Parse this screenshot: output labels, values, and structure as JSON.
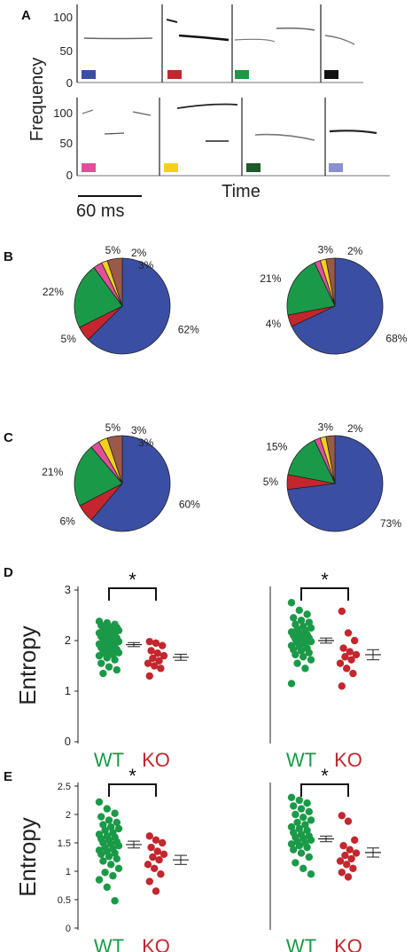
{
  "panel_labels": [
    "A",
    "B",
    "C",
    "D",
    "E"
  ],
  "chart_data": [
    {
      "panel": "A",
      "type": "spectrogram",
      "ylabel": "Frequency",
      "xlabel": "Time",
      "yticks": [
        0,
        50,
        100
      ],
      "scale_bar_label": "60 ms",
      "syllable_colors": [
        "#3a4fa3",
        "#c4262e",
        "#1a9a48",
        "#111111",
        "#e0509a",
        "#f3d11a",
        "#1d5a2c",
        "#8a8fd0"
      ]
    },
    {
      "panel": "B",
      "type": "pie",
      "charts": [
        {
          "slices": [
            {
              "value": 62,
              "label": "62%",
              "color": "#3a4fa3"
            },
            {
              "value": 5,
              "label": "5%",
              "color": "#c4262e"
            },
            {
              "value": 22,
              "label": "22%",
              "color": "#1a9a48"
            },
            {
              "value": 3,
              "label": "3%",
              "color": "#e0509a"
            },
            {
              "value": 2,
              "label": "2%",
              "color": "#f3d11a"
            },
            {
              "value": 5,
              "label": "5%",
              "color": "#9a5a4a"
            }
          ]
        },
        {
          "slices": [
            {
              "value": 68,
              "label": "68%",
              "color": "#3a4fa3"
            },
            {
              "value": 4,
              "label": "4%",
              "color": "#c4262e"
            },
            {
              "value": 21,
              "label": "21%",
              "color": "#1a9a48"
            },
            {
              "value": 2,
              "label": "2%",
              "color": "#e0509a"
            },
            {
              "value": 2,
              "label": "",
              "color": "#f3d11a"
            },
            {
              "value": 3,
              "label": "3%",
              "color": "#9a5a4a"
            }
          ]
        }
      ]
    },
    {
      "panel": "C",
      "type": "pie",
      "charts": [
        {
          "slices": [
            {
              "value": 60,
              "label": "60%",
              "color": "#3a4fa3"
            },
            {
              "value": 6,
              "label": "6%",
              "color": "#c4262e"
            },
            {
              "value": 21,
              "label": "21%",
              "color": "#1a9a48"
            },
            {
              "value": 3,
              "label": "3%",
              "color": "#e0509a"
            },
            {
              "value": 3,
              "label": "3%",
              "color": "#f3d11a"
            },
            {
              "value": 5,
              "label": "5%",
              "color": "#9a5a4a"
            }
          ]
        },
        {
          "slices": [
            {
              "value": 73,
              "label": "73%",
              "color": "#3a4fa3"
            },
            {
              "value": 5,
              "label": "5%",
              "color": "#c4262e"
            },
            {
              "value": 15,
              "label": "15%",
              "color": "#1a9a48"
            },
            {
              "value": 2,
              "label": "2%",
              "color": "#e0509a"
            },
            {
              "value": 2,
              "label": "",
              "color": "#f3d11a"
            },
            {
              "value": 3,
              "label": "3%",
              "color": "#9a5a4a"
            }
          ]
        }
      ]
    },
    {
      "panel": "D",
      "type": "scatter",
      "ylabel": "Entropy",
      "ylim": [
        0,
        3
      ],
      "yticks": [
        0,
        1,
        2,
        3
      ],
      "categories": [
        "WT",
        "KO"
      ],
      "group_colors": {
        "WT": "#1a9a48",
        "KO": "#c4262e"
      },
      "significance": "*",
      "plots": [
        {
          "WT": [
            2.38,
            2.35,
            2.32,
            2.3,
            2.28,
            2.26,
            2.25,
            2.22,
            2.2,
            2.18,
            2.16,
            2.15,
            2.12,
            2.1,
            2.08,
            2.06,
            2.05,
            2.03,
            2.0,
            1.98,
            1.96,
            1.95,
            1.93,
            1.9,
            1.88,
            1.86,
            1.85,
            1.82,
            1.8,
            1.78,
            1.76,
            1.74,
            1.72,
            1.7,
            1.66,
            1.62,
            1.55,
            1.48,
            1.42,
            1.35
          ],
          "KO": [
            1.98,
            1.95,
            1.9,
            1.8,
            1.75,
            1.7,
            1.65,
            1.6,
            1.55,
            1.5,
            1.45,
            1.3
          ],
          "WT_mean": 1.92,
          "WT_sem": 0.04,
          "KO_mean": 1.67,
          "KO_sem": 0.06
        },
        {
          "WT": [
            2.75,
            2.6,
            2.52,
            2.45,
            2.4,
            2.36,
            2.32,
            2.28,
            2.25,
            2.22,
            2.2,
            2.17,
            2.15,
            2.12,
            2.1,
            2.08,
            2.05,
            2.03,
            2.0,
            1.98,
            1.96,
            1.93,
            1.9,
            1.88,
            1.85,
            1.82,
            1.8,
            1.76,
            1.72,
            1.68,
            1.62,
            1.55,
            1.45,
            1.15
          ],
          "KO": [
            2.58,
            2.15,
            2.0,
            1.85,
            1.78,
            1.72,
            1.68,
            1.62,
            1.55,
            1.45,
            1.35,
            1.1
          ],
          "WT_mean": 2.0,
          "WT_sem": 0.05,
          "KO_mean": 1.72,
          "KO_sem": 0.1
        }
      ]
    },
    {
      "panel": "E",
      "type": "scatter",
      "ylabel": "Entropy",
      "ylim": [
        0,
        2.5
      ],
      "yticks": [
        0,
        0.5,
        1,
        1.5,
        2,
        2.5
      ],
      "categories": [
        "WT",
        "KO"
      ],
      "group_colors": {
        "WT": "#1a9a48",
        "KO": "#c4262e"
      },
      "significance": "*",
      "plots": [
        {
          "WT": [
            2.22,
            2.1,
            2.02,
            1.96,
            1.9,
            1.86,
            1.82,
            1.78,
            1.75,
            1.72,
            1.68,
            1.65,
            1.62,
            1.6,
            1.57,
            1.55,
            1.52,
            1.5,
            1.48,
            1.45,
            1.42,
            1.4,
            1.37,
            1.35,
            1.32,
            1.3,
            1.26,
            1.22,
            1.18,
            1.12,
            1.05,
            0.98,
            0.92,
            0.85,
            0.72,
            0.48
          ],
          "KO": [
            1.62,
            1.55,
            1.5,
            1.42,
            1.35,
            1.3,
            1.25,
            1.2,
            1.12,
            1.05,
            0.95,
            0.82,
            0.65
          ],
          "WT_mean": 1.47,
          "WT_sem": 0.06,
          "KO_mean": 1.2,
          "KO_sem": 0.08
        },
        {
          "WT": [
            2.3,
            2.25,
            2.2,
            2.15,
            2.1,
            2.05,
            2.0,
            1.95,
            1.9,
            1.86,
            1.82,
            1.78,
            1.75,
            1.72,
            1.68,
            1.65,
            1.62,
            1.6,
            1.58,
            1.55,
            1.52,
            1.5,
            1.48,
            1.45,
            1.42,
            1.38,
            1.32,
            1.25,
            1.15,
            1.05,
            0.95
          ],
          "KO": [
            1.98,
            1.88,
            1.55,
            1.45,
            1.38,
            1.32,
            1.28,
            1.22,
            1.18,
            1.12,
            1.05,
            0.98,
            0.9
          ],
          "WT_mean": 1.57,
          "WT_sem": 0.05,
          "KO_mean": 1.33,
          "KO_sem": 0.08
        }
      ]
    }
  ]
}
